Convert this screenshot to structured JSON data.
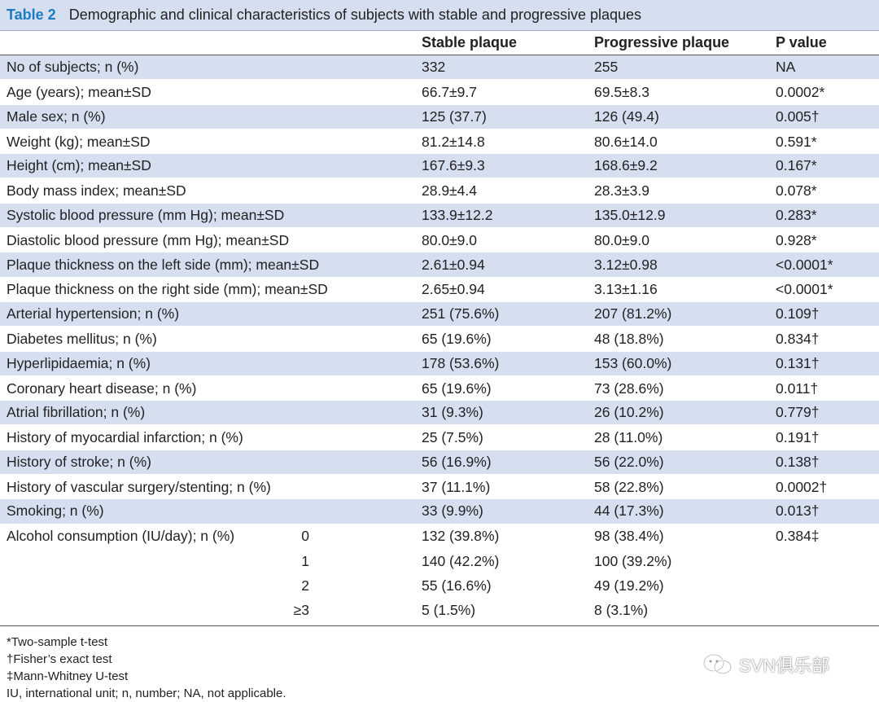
{
  "table": {
    "label": "Table 2",
    "caption": "Demographic and clinical characteristics of subjects with stable and progressive plaques",
    "headers": [
      "",
      "Stable plaque",
      "Progressive plaque",
      "P value"
    ],
    "rows": [
      {
        "label": "No of subjects; n (%)",
        "sub": "",
        "stable": "332",
        "progressive": "255",
        "p": "NA",
        "shade": true
      },
      {
        "label": "Age (years); mean±SD",
        "sub": "",
        "stable": "66.7±9.7",
        "progressive": "69.5±8.3",
        "p": "0.0002*",
        "shade": false
      },
      {
        "label": "Male sex; n (%)",
        "sub": "",
        "stable": "125 (37.7)",
        "progressive": "126 (49.4)",
        "p": "0.005†",
        "shade": true
      },
      {
        "label": "Weight (kg); mean±SD",
        "sub": "",
        "stable": "81.2±14.8",
        "progressive": "80.6±14.0",
        "p": "0.591*",
        "shade": false
      },
      {
        "label": "Height (cm); mean±SD",
        "sub": "",
        "stable": "167.6±9.3",
        "progressive": "168.6±9.2",
        "p": "0.167*",
        "shade": true
      },
      {
        "label": "Body mass index; mean±SD",
        "sub": "",
        "stable": "28.9±4.4",
        "progressive": "28.3±3.9",
        "p": "0.078*",
        "shade": false
      },
      {
        "label": "Systolic blood pressure (mm Hg); mean±SD",
        "sub": "",
        "stable": "133.9±12.2",
        "progressive": "135.0±12.9",
        "p": "0.283*",
        "shade": true
      },
      {
        "label": "Diastolic blood pressure (mm Hg); mean±SD",
        "sub": "",
        "stable": "80.0±9.0",
        "progressive": "80.0±9.0",
        "p": "0.928*",
        "shade": false
      },
      {
        "label": "Plaque thickness on the left side (mm); mean±SD",
        "sub": "",
        "stable": "2.61±0.94",
        "progressive": "3.12±0.98",
        "p": "<0.0001*",
        "shade": true
      },
      {
        "label": "Plaque thickness on the right side (mm); mean±SD",
        "sub": "",
        "stable": "2.65±0.94",
        "progressive": "3.13±1.16",
        "p": "<0.0001*",
        "shade": false
      },
      {
        "label": "Arterial hypertension; n (%)",
        "sub": "",
        "stable": "251 (75.6%)",
        "progressive": "207 (81.2%)",
        "p": "0.109†",
        "shade": true
      },
      {
        "label": "Diabetes mellitus; n (%)",
        "sub": "",
        "stable": "65 (19.6%)",
        "progressive": "48 (18.8%)",
        "p": "0.834†",
        "shade": false
      },
      {
        "label": "Hyperlipidaemia; n (%)",
        "sub": "",
        "stable": "178 (53.6%)",
        "progressive": "153 (60.0%)",
        "p": "0.131†",
        "shade": true
      },
      {
        "label": "Coronary heart disease; n (%)",
        "sub": "",
        "stable": "65 (19.6%)",
        "progressive": "73 (28.6%)",
        "p": "0.011†",
        "shade": false
      },
      {
        "label": "Atrial fibrillation; n (%)",
        "sub": "",
        "stable": "31 (9.3%)",
        "progressive": "26 (10.2%)",
        "p": "0.779†",
        "shade": true
      },
      {
        "label": "History of myocardial infarction; n (%)",
        "sub": "",
        "stable": "25 (7.5%)",
        "progressive": "28 (11.0%)",
        "p": "0.191†",
        "shade": false
      },
      {
        "label": "History of stroke; n (%)",
        "sub": "",
        "stable": "56 (16.9%)",
        "progressive": "56 (22.0%)",
        "p": "0.138†",
        "shade": true
      },
      {
        "label": "History of vascular surgery/stenting; n (%)",
        "sub": "",
        "stable": "37 (11.1%)",
        "progressive": "58 (22.8%)",
        "p": "0.0002†",
        "shade": false
      },
      {
        "label": "Smoking; n (%)",
        "sub": "",
        "stable": "33 (9.9%)",
        "progressive": "44 (17.3%)",
        "p": "0.013†",
        "shade": true
      },
      {
        "label": "Alcohol consumption (IU/day); n (%)",
        "sub": "0",
        "stable": "132 (39.8%)",
        "progressive": "98 (38.4%)",
        "p": "0.384‡",
        "shade": false
      },
      {
        "label": "",
        "sub": "1",
        "stable": "140 (42.2%)",
        "progressive": "100 (39.2%)",
        "p": "",
        "shade": false
      },
      {
        "label": "",
        "sub": "2",
        "stable": "55 (16.6%)",
        "progressive": "49 (19.2%)",
        "p": "",
        "shade": false
      },
      {
        "label": "",
        "sub": "≥3",
        "stable": "5 (1.5%)",
        "progressive": "8 (3.1%)",
        "p": "",
        "shade": false
      }
    ]
  },
  "footnotes": [
    "*Two-sample t-test",
    "†Fisher’s exact test",
    "‡Mann-Whitney U-test",
    "IU, international unit; n, number; NA, not applicable."
  ],
  "watermark": {
    "text": "SVN俱乐部",
    "icon": "wechat-icon"
  },
  "colors": {
    "shade": "#d5dff0",
    "accent": "#1b7cc2"
  }
}
